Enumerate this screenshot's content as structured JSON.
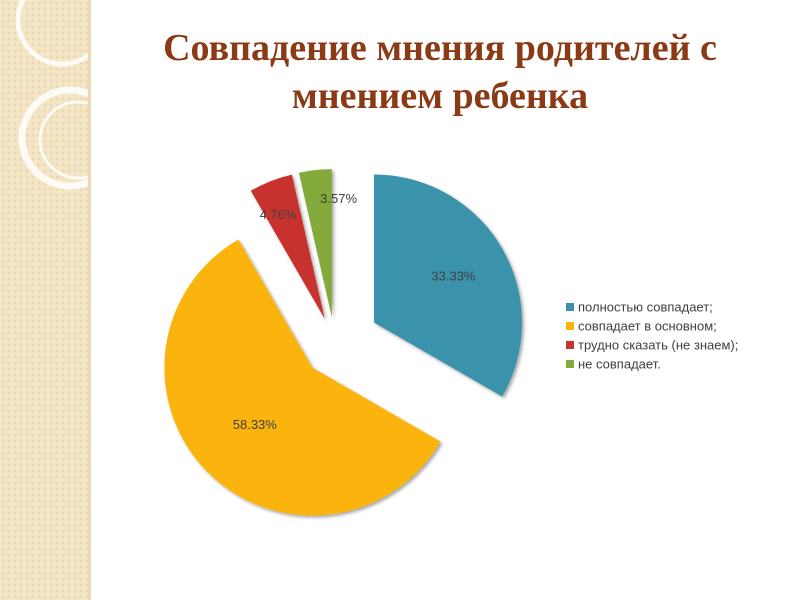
{
  "slide": {
    "title": "Совпадение мнения родителей с мнением ребенка"
  },
  "chart_data": {
    "type": "pie",
    "title": "Совпадение мнения родителей с мнением ребенка",
    "categories": [
      "полностью совпадает;",
      "совпадает в основном;",
      "трудно сказать (не знаем);",
      "не совпадает."
    ],
    "values": [
      33.33,
      58.33,
      4.76,
      3.57
    ],
    "labels": [
      "33.33%",
      "58.33%",
      "4.76%",
      "3.57%"
    ],
    "colors": [
      "#3b93ab",
      "#fbb40c",
      "#c8322f",
      "#82ab3a"
    ],
    "exploded": true,
    "legend_position": "right"
  }
}
